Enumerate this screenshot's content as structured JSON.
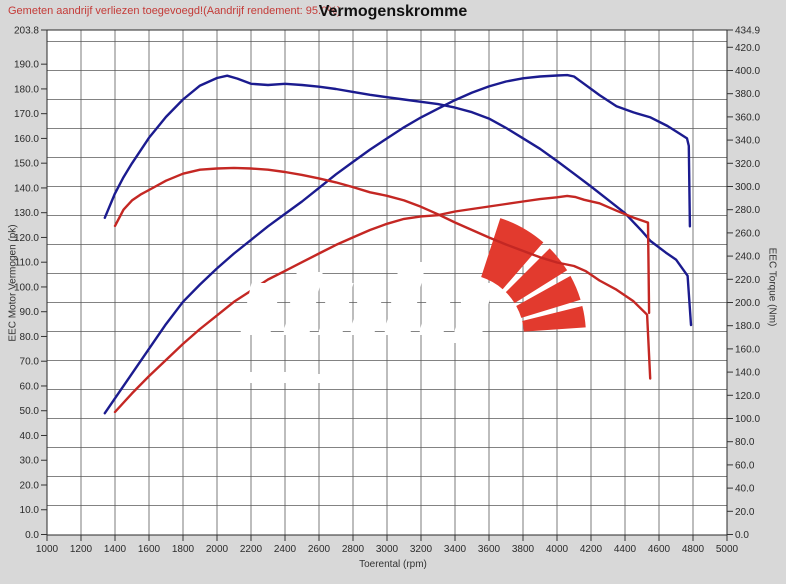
{
  "header": {
    "annotation": "Gemeten aandrijf verliezen toegevoegd!(Aandrijf rendement: 95.0%)",
    "title": "Vermogenskromme"
  },
  "colors": {
    "page_bg": "#d8d8d8",
    "plot_bg": "#ffffff",
    "grid": "#5a5a5a",
    "border": "#2a2a2a",
    "tuned": "#1b1b8f",
    "stock": "#c42723",
    "logo": "#e23a2e",
    "annotation": "#c43b38"
  },
  "chart_data": {
    "type": "line",
    "title": "Vermogenskromme",
    "xlabel": "Toerental (rpm)",
    "ylabel_left": "EEC Motor Vermogen (pk)",
    "ylabel_right": "EEC Torque (Nm)",
    "x_range": [
      1000,
      5000
    ],
    "y_left_range": [
      0,
      203.8
    ],
    "y_right_range": [
      0,
      434.9
    ],
    "grid": true,
    "legend_position": "none",
    "x_ticks": [
      "1000",
      "1200",
      "1400",
      "1600",
      "1800",
      "2000",
      "2200",
      "2400",
      "2600",
      "2800",
      "3000",
      "3200",
      "3400",
      "3600",
      "3800",
      "4000",
      "4200",
      "4400",
      "4600",
      "4800",
      "5000"
    ],
    "y_left_ticks": [
      "203.8",
      "190.0",
      "180.0",
      "170.0",
      "160.0",
      "150.0",
      "140.0",
      "130.0",
      "120.0",
      "110.0",
      "100.0",
      "90.0",
      "80.0",
      "70.0",
      "60.0",
      "50.0",
      "40.0",
      "30.0",
      "20.0",
      "10.0",
      "0.0"
    ],
    "y_right_ticks": [
      "434.9",
      "420.0",
      "400.0",
      "380.0",
      "360.0",
      "340.0",
      "320.0",
      "300.0",
      "280.0",
      "260.0",
      "240.0",
      "220.0",
      "200.0",
      "180.0",
      "160.0",
      "140.0",
      "120.0",
      "100.0",
      "80.0",
      "60.0",
      "40.0",
      "20.0",
      "0.0"
    ],
    "series": [
      {
        "name": "power-tuned-pk",
        "axis": "left",
        "color": "#1b1b8f",
        "peak": {
          "rpm": 4060,
          "value": 185.6,
          "unit": "pk"
        },
        "points": [
          [
            1340,
            49
          ],
          [
            1400,
            55
          ],
          [
            1500,
            65
          ],
          [
            1600,
            75
          ],
          [
            1700,
            85
          ],
          [
            1800,
            94
          ],
          [
            1900,
            101
          ],
          [
            2000,
            107.5
          ],
          [
            2100,
            113.5
          ],
          [
            2200,
            119
          ],
          [
            2300,
            124.5
          ],
          [
            2400,
            129.5
          ],
          [
            2500,
            134.5
          ],
          [
            2600,
            140
          ],
          [
            2700,
            145.5
          ],
          [
            2800,
            150.5
          ],
          [
            2900,
            155.5
          ],
          [
            3000,
            160
          ],
          [
            3100,
            164.5
          ],
          [
            3200,
            168.5
          ],
          [
            3300,
            172
          ],
          [
            3400,
            175.5
          ],
          [
            3500,
            178.5
          ],
          [
            3600,
            181
          ],
          [
            3700,
            183
          ],
          [
            3800,
            184.3
          ],
          [
            3900,
            185
          ],
          [
            4000,
            185.4
          ],
          [
            4060,
            185.6
          ],
          [
            4100,
            185
          ],
          [
            4150,
            182.5
          ],
          [
            4250,
            177.5
          ],
          [
            4350,
            173
          ],
          [
            4450,
            170.5
          ],
          [
            4550,
            168.5
          ],
          [
            4650,
            165
          ],
          [
            4720,
            162
          ],
          [
            4765,
            160
          ],
          [
            4775,
            157
          ],
          [
            4782,
            124.5
          ]
        ]
      },
      {
        "name": "torque-tuned-nm",
        "axis": "right",
        "color": "#1b1b8f",
        "peak": {
          "rpm": 2060,
          "value": 395.5,
          "unit": "Nm"
        },
        "points": [
          [
            1340,
            273
          ],
          [
            1400,
            294
          ],
          [
            1450,
            308
          ],
          [
            1500,
            320
          ],
          [
            1600,
            342
          ],
          [
            1700,
            360
          ],
          [
            1800,
            375
          ],
          [
            1900,
            387
          ],
          [
            2000,
            393.5
          ],
          [
            2060,
            395.5
          ],
          [
            2120,
            393
          ],
          [
            2200,
            388.5
          ],
          [
            2300,
            387.5
          ],
          [
            2400,
            388.5
          ],
          [
            2500,
            387.5
          ],
          [
            2600,
            386
          ],
          [
            2700,
            384
          ],
          [
            2800,
            381.5
          ],
          [
            2900,
            379
          ],
          [
            3000,
            377
          ],
          [
            3100,
            375
          ],
          [
            3200,
            373
          ],
          [
            3300,
            371
          ],
          [
            3400,
            368
          ],
          [
            3500,
            364
          ],
          [
            3600,
            358.5
          ],
          [
            3700,
            350.5
          ],
          [
            3800,
            341.5
          ],
          [
            3900,
            332.5
          ],
          [
            4000,
            322
          ],
          [
            4100,
            311
          ],
          [
            4200,
            300
          ],
          [
            4300,
            288.5
          ],
          [
            4400,
            277
          ],
          [
            4500,
            261.5
          ],
          [
            4550,
            253
          ],
          [
            4640,
            243
          ],
          [
            4700,
            237
          ],
          [
            4768,
            223
          ],
          [
            4788,
            180.5
          ]
        ]
      },
      {
        "name": "power-stock-pk",
        "axis": "left",
        "color": "#c42723",
        "peak": {
          "rpm": 4060,
          "value": 136.8,
          "unit": "pk"
        },
        "points": [
          [
            1400,
            49.5
          ],
          [
            1500,
            57
          ],
          [
            1600,
            64
          ],
          [
            1700,
            70.5
          ],
          [
            1800,
            77
          ],
          [
            1900,
            83
          ],
          [
            2000,
            88.5
          ],
          [
            2100,
            94
          ],
          [
            2200,
            98.5
          ],
          [
            2300,
            103
          ],
          [
            2400,
            106.5
          ],
          [
            2500,
            110
          ],
          [
            2600,
            113.5
          ],
          [
            2700,
            117
          ],
          [
            2800,
            120
          ],
          [
            2900,
            123
          ],
          [
            3000,
            125.5
          ],
          [
            3100,
            127.5
          ],
          [
            3200,
            128.5
          ],
          [
            3300,
            129
          ],
          [
            3400,
            130.5
          ],
          [
            3500,
            131.5
          ],
          [
            3600,
            132.5
          ],
          [
            3700,
            133.5
          ],
          [
            3800,
            134.5
          ],
          [
            3900,
            135.5
          ],
          [
            4000,
            136.2
          ],
          [
            4060,
            136.8
          ],
          [
            4110,
            136.3
          ],
          [
            4160,
            135.2
          ],
          [
            4250,
            133.8
          ],
          [
            4350,
            130.8
          ],
          [
            4450,
            128
          ],
          [
            4535,
            126
          ],
          [
            4542,
            89.5
          ]
        ]
      },
      {
        "name": "torque-stock-nm",
        "axis": "right",
        "color": "#c42723",
        "peak": {
          "rpm": 2100,
          "value": 316,
          "unit": "Nm"
        },
        "points": [
          [
            1400,
            266
          ],
          [
            1450,
            280
          ],
          [
            1500,
            288
          ],
          [
            1550,
            293
          ],
          [
            1600,
            297
          ],
          [
            1700,
            305
          ],
          [
            1800,
            311
          ],
          [
            1900,
            314.5
          ],
          [
            2000,
            315.5
          ],
          [
            2100,
            316
          ],
          [
            2200,
            315.5
          ],
          [
            2300,
            314.5
          ],
          [
            2400,
            312.5
          ],
          [
            2500,
            310
          ],
          [
            2600,
            307
          ],
          [
            2700,
            303.5
          ],
          [
            2800,
            299.5
          ],
          [
            2900,
            295
          ],
          [
            3000,
            292
          ],
          [
            3100,
            288
          ],
          [
            3200,
            282.5
          ],
          [
            3300,
            276
          ],
          [
            3400,
            269
          ],
          [
            3500,
            262.5
          ],
          [
            3600,
            256
          ],
          [
            3700,
            250
          ],
          [
            3800,
            244.5
          ],
          [
            3900,
            239
          ],
          [
            4000,
            234.5
          ],
          [
            4100,
            231.5
          ],
          [
            4170,
            227
          ],
          [
            4250,
            219
          ],
          [
            4350,
            211
          ],
          [
            4450,
            201
          ],
          [
            4530,
            189.5
          ],
          [
            4548,
            134.5
          ]
        ]
      }
    ]
  }
}
